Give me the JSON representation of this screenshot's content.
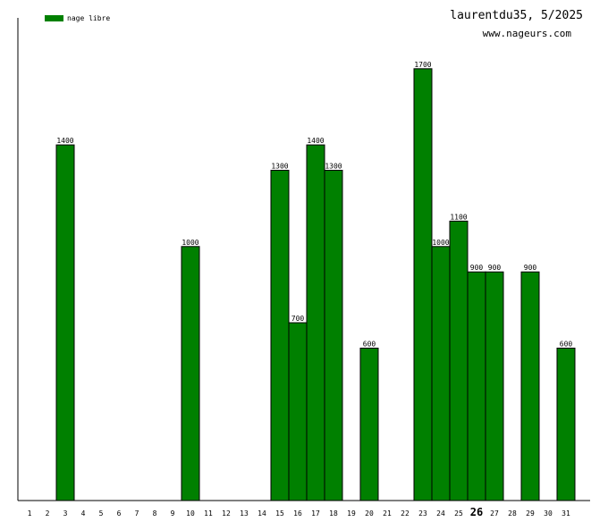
{
  "chart_data": {
    "type": "bar",
    "title": "laurentdu35, 5/2025",
    "subtitle": "www.nageurs.com",
    "legend": {
      "placement": "top-left",
      "entries": [
        "nage libre"
      ]
    },
    "colors": {
      "bar": "#008000",
      "bar_border": "#000000"
    },
    "categories": [
      "1",
      "2",
      "3",
      "4",
      "5",
      "6",
      "7",
      "8",
      "9",
      "10",
      "11",
      "12",
      "13",
      "14",
      "15",
      "16",
      "17",
      "18",
      "19",
      "20",
      "21",
      "22",
      "23",
      "24",
      "25",
      "26",
      "27",
      "28",
      "29",
      "30",
      "31"
    ],
    "highlighted_category": "26",
    "series": [
      {
        "name": "nage libre",
        "values": [
          0,
          0,
          1400,
          0,
          0,
          0,
          0,
          0,
          0,
          1000,
          0,
          0,
          0,
          0,
          1300,
          700,
          1400,
          1300,
          0,
          600,
          0,
          0,
          1700,
          1000,
          1100,
          900,
          900,
          0,
          900,
          0,
          600
        ]
      }
    ],
    "ylim": [
      0,
      1900
    ],
    "grid": false,
    "xlabel": "",
    "ylabel": ""
  }
}
